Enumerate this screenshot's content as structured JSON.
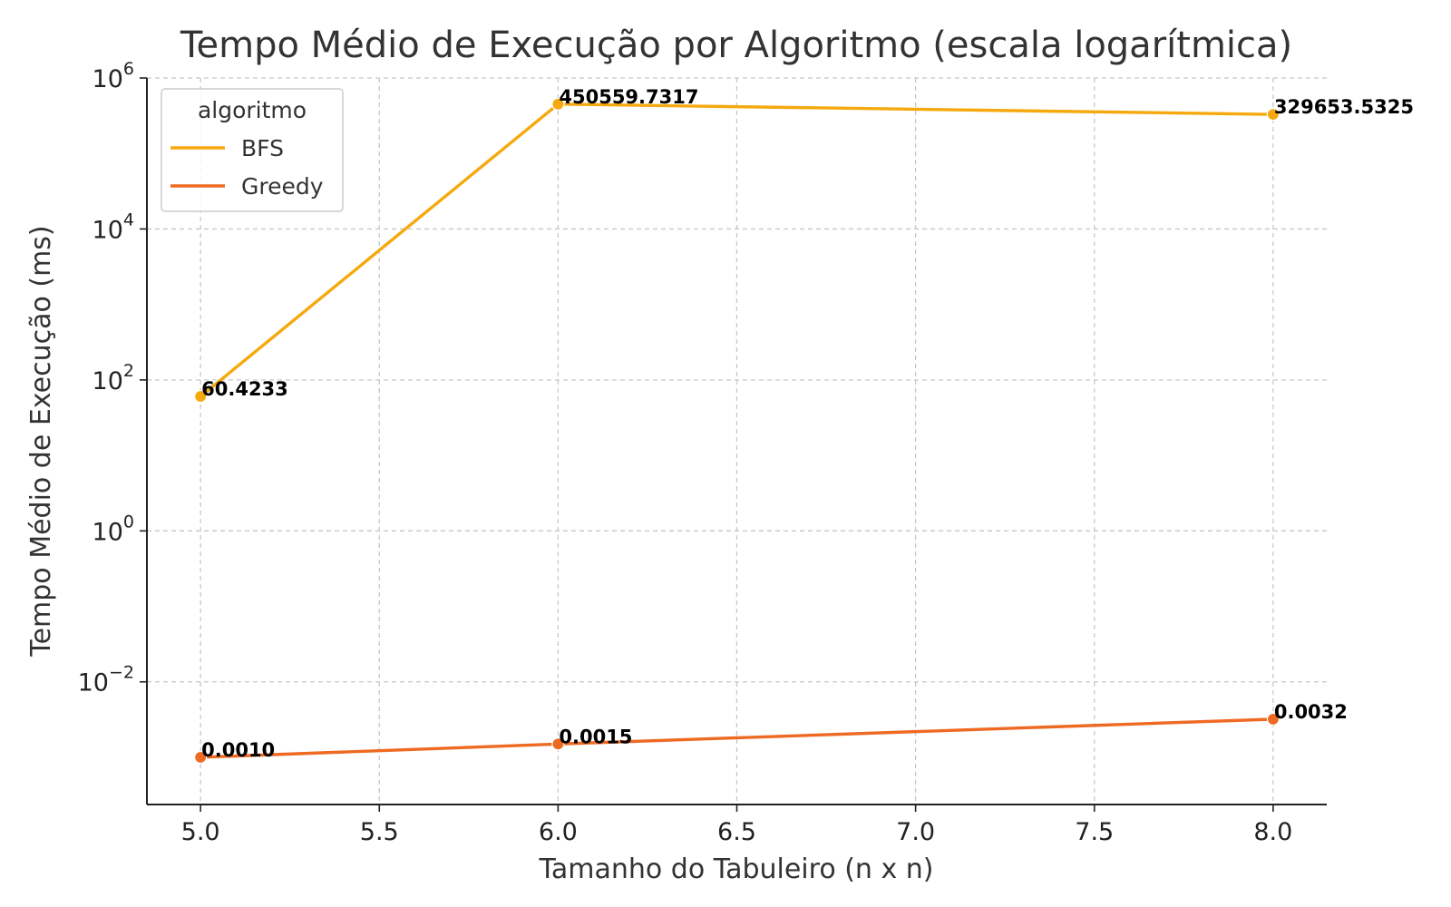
{
  "chart_data": {
    "type": "line",
    "title": "Tempo Médio de Execução por Algoritmo (escala logarítmica)",
    "xlabel": "Tamanho do Tabuleiro (n x n)",
    "ylabel": "Tempo Médio de Execução (ms)",
    "yscale": "log",
    "xlim": [
      4.85,
      8.15
    ],
    "ylim": [
      0.000237,
      1000000
    ],
    "x_ticks": [
      "5.0",
      "5.5",
      "6.0",
      "6.5",
      "7.0",
      "7.5",
      "8.0"
    ],
    "y_ticks": [
      {
        "value": 1000000,
        "base": "10",
        "exp": "6"
      },
      {
        "value": 10000,
        "base": "10",
        "exp": "4"
      },
      {
        "value": 100,
        "base": "10",
        "exp": "2"
      },
      {
        "value": 1,
        "base": "10",
        "exp": "0"
      },
      {
        "value": 0.01,
        "base": "10",
        "exp": "−2"
      }
    ],
    "grid": true,
    "legend": {
      "title": "algoritmo",
      "position": "top-left"
    },
    "series": [
      {
        "name": "BFS",
        "color": "#f5a90f",
        "x": [
          5,
          6,
          8
        ],
        "values": [
          60.4233,
          450559.7317,
          329653.5325
        ],
        "labels": [
          "60.4233",
          "450559.7317",
          "329653.5325"
        ]
      },
      {
        "name": "Greedy",
        "color": "#ee6a22",
        "x": [
          5,
          6,
          8
        ],
        "values": [
          0.001,
          0.0015,
          0.0032
        ],
        "labels": [
          "0.0010",
          "0.0015",
          "0.0032"
        ]
      }
    ]
  }
}
